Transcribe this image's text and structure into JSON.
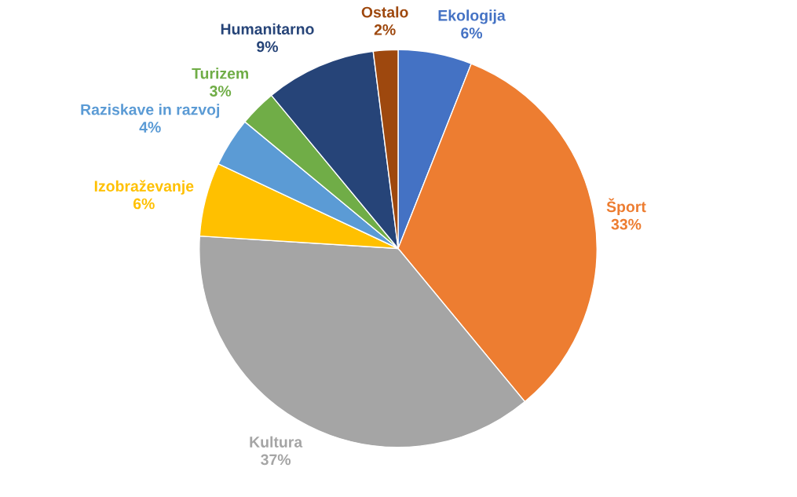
{
  "chart_data": {
    "type": "pie",
    "categories": [
      "Ekologija",
      "Šport",
      "Kultura",
      "Izobraževanje",
      "Raziskave in razvoj",
      "Turizem",
      "Humanitarno",
      "Ostalo"
    ],
    "values": [
      6,
      33,
      37,
      6,
      4,
      3,
      9,
      2
    ],
    "value_labels": [
      "6%",
      "33%",
      "37%",
      "6%",
      "4%",
      "3%",
      "9%",
      "2%"
    ],
    "colors": [
      "#4472c4",
      "#ed7d31",
      "#a5a5a5",
      "#ffc000",
      "#5b9bd5",
      "#70ad47",
      "#264478",
      "#9e480e"
    ],
    "legend": false
  }
}
